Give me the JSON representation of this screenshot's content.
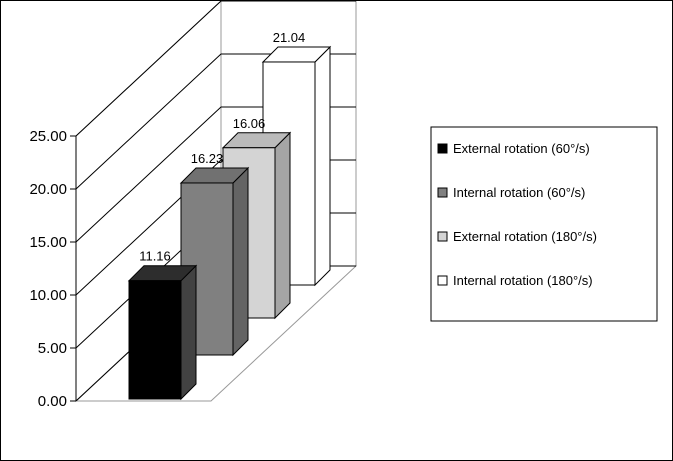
{
  "chart_data": {
    "type": "bar",
    "title": "",
    "xlabel": "",
    "ylabel": "",
    "ylim": [
      0,
      25
    ],
    "y_ticks": [
      "0.00",
      "5.00",
      "10.00",
      "15.00",
      "20.00",
      "25.00"
    ],
    "grid": true,
    "legend_position": "right",
    "series": [
      {
        "name": "External rotation (60°/s)",
        "value": 11.16,
        "label": "11.16",
        "color": "#000000"
      },
      {
        "name": "Internal rotation (60°/s)",
        "value": 16.23,
        "label": "16.23",
        "color": "#808080"
      },
      {
        "name": "External rotation (180°/s)",
        "value": 16.06,
        "label": "16.06",
        "color": "#d4d4d4"
      },
      {
        "name": "Internal rotation (180°/s)",
        "value": 21.04,
        "label": "21.04",
        "color": "#ffffff"
      }
    ]
  }
}
